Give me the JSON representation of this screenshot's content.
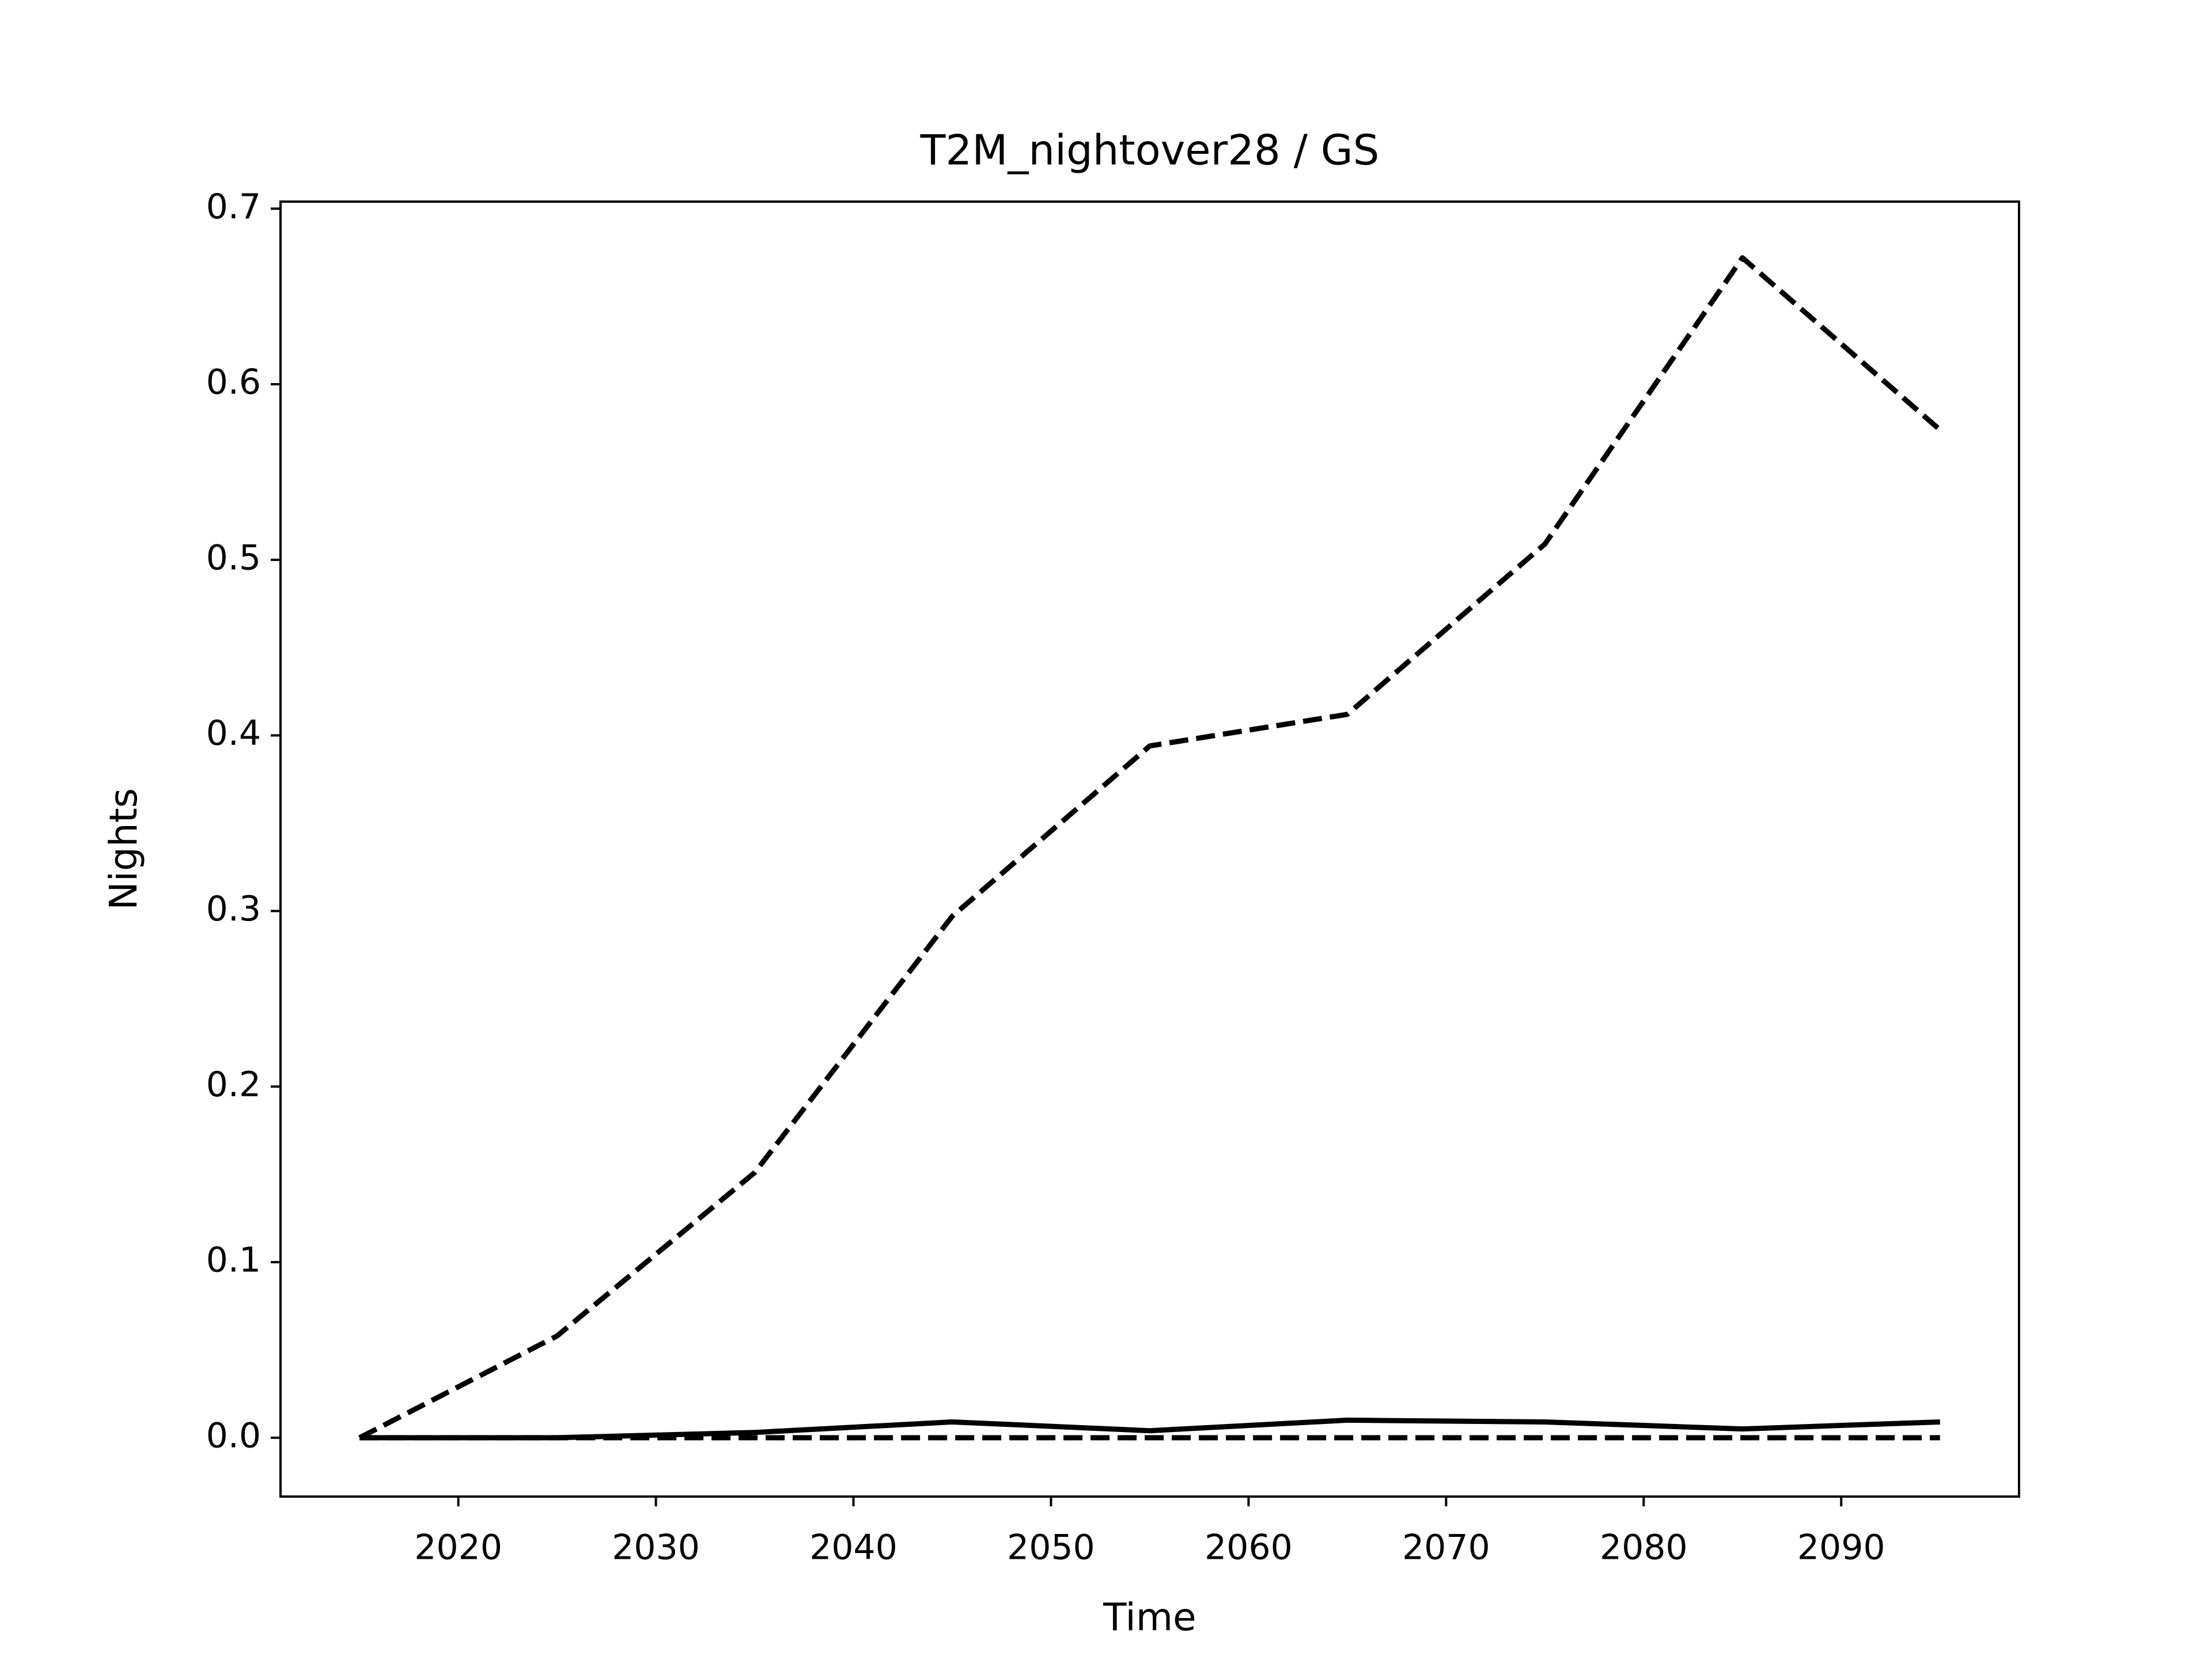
{
  "chart_data": {
    "type": "line",
    "title": "T2M_nightover28 / GS",
    "xlabel": "Time",
    "ylabel": "Nights",
    "x": [
      2015,
      2025,
      2035,
      2045,
      2055,
      2065,
      2075,
      2085,
      2095
    ],
    "series": [
      {
        "color": "#000000",
        "linestyle": "dashed",
        "values": [
          0.0,
          0.058,
          0.151,
          0.297,
          0.394,
          0.412,
          0.509,
          0.672,
          0.574
        ]
      },
      {
        "color": "#000000",
        "linestyle": "solid",
        "values": [
          0.0,
          0.0,
          0.003,
          0.009,
          0.004,
          0.01,
          0.009,
          0.005,
          0.009
        ]
      },
      {
        "color": "#000000",
        "linestyle": "dashed",
        "values": [
          0.0,
          0.0,
          0.0,
          0.0,
          0.0,
          0.0,
          0.0,
          0.0,
          0.0
        ]
      }
    ],
    "xlim": [
      2011,
      2099
    ],
    "ylim": [
      -0.0335,
      0.704
    ],
    "xticks": [
      2020,
      2030,
      2040,
      2050,
      2060,
      2070,
      2080,
      2090
    ],
    "yticks": [
      {
        "value": 0,
        "label": "0.0"
      },
      0.1,
      0.2,
      0.3,
      0.4,
      0.5,
      0.6,
      0.7
    ],
    "grid": false
  }
}
